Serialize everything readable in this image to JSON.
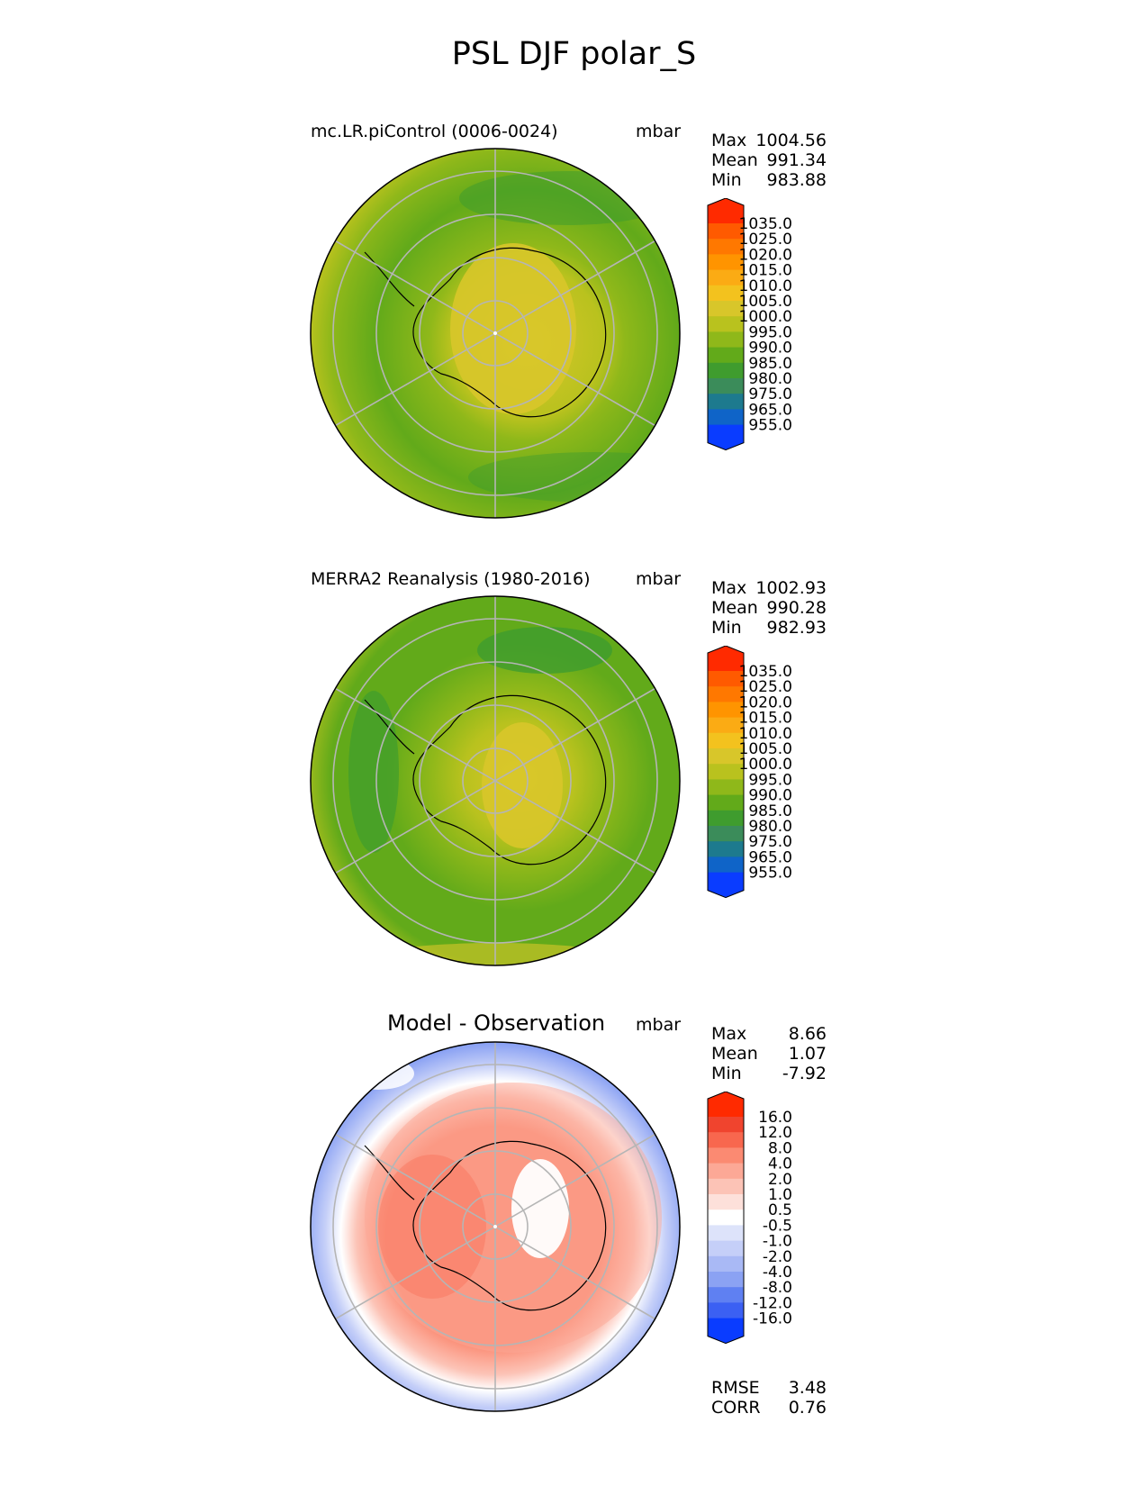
{
  "title": "PSL DJF polar_S",
  "panels": [
    {
      "title": "mc.LR.piControl (0006-0024)",
      "units": "mbar",
      "stats": {
        "labels": [
          "Max",
          "Mean",
          "Min"
        ],
        "values": [
          "1004.56",
          "991.34",
          "983.88"
        ]
      },
      "colormap": "abs"
    },
    {
      "title": "MERRA2 Reanalysis (1980-2016)",
      "units": "mbar",
      "stats": {
        "labels": [
          "Max",
          "Mean",
          "Min"
        ],
        "values": [
          "1002.93",
          "990.28",
          "982.93"
        ]
      },
      "colormap": "abs"
    },
    {
      "title": "Model - Observation",
      "units": "mbar",
      "stats": {
        "labels": [
          "Max",
          "Mean",
          "Min"
        ],
        "values": [
          "8.66",
          "1.07",
          "-7.92"
        ]
      },
      "colormap": "diff",
      "metrics": {
        "labels": [
          "RMSE",
          "CORR"
        ],
        "values": [
          "3.48",
          "0.76"
        ]
      }
    }
  ],
  "chart_data": [
    {
      "type": "heatmap",
      "title": "mc.LR.piControl (0006-0024)",
      "projection": "south-polar-stereographic",
      "units": "mbar",
      "max": 1004.56,
      "mean": 991.34,
      "min": 983.88,
      "colorbar_ticks": [
        "1035.0",
        "1025.0",
        "1020.0",
        "1015.0",
        "1010.0",
        "1005.0",
        "1000.0",
        "995.0",
        "990.0",
        "985.0",
        "980.0",
        "975.0",
        "965.0",
        "955.0"
      ]
    },
    {
      "type": "heatmap",
      "title": "MERRA2 Reanalysis (1980-2016)",
      "projection": "south-polar-stereographic",
      "units": "mbar",
      "max": 1002.93,
      "mean": 990.28,
      "min": 982.93,
      "colorbar_ticks": [
        "1035.0",
        "1025.0",
        "1020.0",
        "1015.0",
        "1010.0",
        "1005.0",
        "1000.0",
        "995.0",
        "990.0",
        "985.0",
        "980.0",
        "975.0",
        "965.0",
        "955.0"
      ]
    },
    {
      "type": "heatmap",
      "title": "Model - Observation",
      "projection": "south-polar-stereographic",
      "units": "mbar",
      "max": 8.66,
      "mean": 1.07,
      "min": -7.92,
      "rmse": 3.48,
      "corr": 0.76,
      "colorbar_ticks": [
        "16.0",
        "12.0",
        "8.0",
        "4.0",
        "2.0",
        "1.0",
        "0.5",
        "-0.5",
        "-1.0",
        "-2.0",
        "-4.0",
        "-8.0",
        "-12.0",
        "-16.0"
      ]
    }
  ],
  "colormaps": {
    "abs": {
      "over": "#ff2a00",
      "under": "#0a3cff",
      "bands": [
        "#ff5a00",
        "#ff7800",
        "#ff9400",
        "#fbab14",
        "#f3c21e",
        "#d8c62a",
        "#b9c21e",
        "#8fb81a",
        "#62aa1a",
        "#3f9c2e",
        "#3b8c5a",
        "#1d7a8e",
        "#0f64c8"
      ]
    },
    "diff": {
      "over": "#ff2a00",
      "under": "#0a3cff",
      "bands": [
        "#f0442e",
        "#f8674e",
        "#fb8a72",
        "#fca896",
        "#fcc3b6",
        "#fde0da",
        "#ffffff",
        "#dde3fa",
        "#c5cff8",
        "#a9b9f5",
        "#8ba2f3",
        "#5f80f2",
        "#3b60f3"
      ]
    }
  }
}
